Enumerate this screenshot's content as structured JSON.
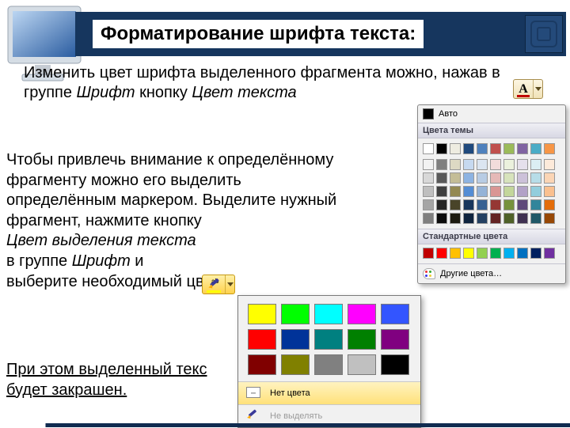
{
  "header": {
    "title": "Форматирование шрифта текста:"
  },
  "para1": {
    "lead": "Изменить цвет шрифта выделенного фрагмента можно, нажав в группе ",
    "group": "Шрифт",
    "mid": " кнопку ",
    "btn": "Цвет текста"
  },
  "fontColorButton": {
    "letter": "A",
    "bar_color": "#c00000"
  },
  "colorPicker": {
    "auto_label": "Авто",
    "auto_swatch": "#000000",
    "theme_label": "Цвета темы",
    "theme_row1": [
      "#ffffff",
      "#000000",
      "#eeece1",
      "#1f497d",
      "#4f81bd",
      "#c0504d",
      "#9bbb59",
      "#8064a2",
      "#4bacc6",
      "#f79646"
    ],
    "theme_shades": [
      [
        "#f2f2f2",
        "#7f7f7f",
        "#ddd9c3",
        "#c6d9f0",
        "#dbe5f1",
        "#f2dcdb",
        "#ebf1dd",
        "#e5e0ec",
        "#dbeef3",
        "#fdeada"
      ],
      [
        "#d8d8d8",
        "#595959",
        "#c4bd97",
        "#8db3e2",
        "#b8cce4",
        "#e5b9b7",
        "#d7e3bc",
        "#ccc1d9",
        "#b7dde8",
        "#fbd5b5"
      ],
      [
        "#bfbfbf",
        "#3f3f3f",
        "#938953",
        "#548dd4",
        "#95b3d7",
        "#d99694",
        "#c3d69b",
        "#b2a2c7",
        "#92cddc",
        "#fac08f"
      ],
      [
        "#a5a5a5",
        "#262626",
        "#494429",
        "#17365d",
        "#366092",
        "#953734",
        "#76923c",
        "#5f497a",
        "#31859b",
        "#e36c09"
      ],
      [
        "#7f7f7f",
        "#0c0c0c",
        "#1d1b10",
        "#0f243e",
        "#244061",
        "#632423",
        "#4f6128",
        "#3f3151",
        "#205867",
        "#974806"
      ]
    ],
    "std_label": "Стандартные цвета",
    "std_colors": [
      "#c00000",
      "#ff0000",
      "#ffc000",
      "#ffff00",
      "#92d050",
      "#00b050",
      "#00b0f0",
      "#0070c0",
      "#002060",
      "#7030a0"
    ],
    "more_label": "Другие цвета…"
  },
  "para2": {
    "t1": "Чтобы привлечь внимание к определённому фрагменту можно его выделить определённым маркером. Выделите нужный фрагмент, нажмите кнопку",
    "hl_label": "Цвет выделения текста",
    "t2a": "в группе ",
    "group": "Шрифт",
    "t2b": " и",
    "t3": "выберите необходимый цвет."
  },
  "highlightPanel": {
    "colors": [
      "#ffff00",
      "#00ff00",
      "#00ffff",
      "#ff00ff",
      "#3355ff",
      "#ff0000",
      "#003399",
      "#008080",
      "#008000",
      "#800080",
      "#800000",
      "#808000",
      "#808080",
      "#c0c0c0",
      "#000000"
    ],
    "no_color_label": "Нет цвета",
    "stop_label": "Не выделять"
  },
  "para3": {
    "text": "При этом выделенный текс будет закрашен."
  },
  "colors": {
    "header_bg": "#16365e"
  }
}
